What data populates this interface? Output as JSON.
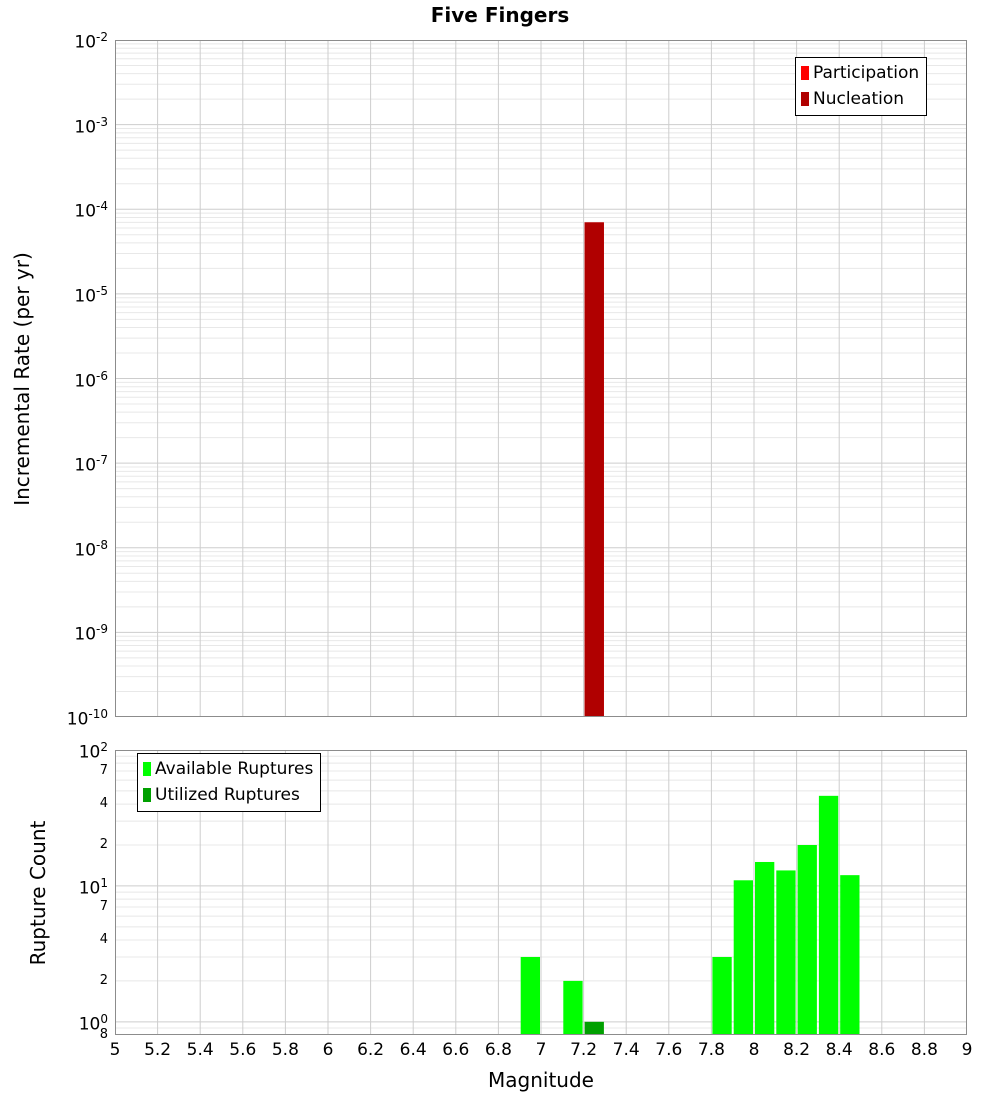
{
  "title": "Five Fingers",
  "colors": {
    "participation": "#ff0000",
    "nucleation": "#b00000",
    "available": "#00ff00",
    "utilized": "#00a000",
    "grid_major": "#cdcdcd",
    "grid_minor": "#e8e8e8",
    "axis_border": "#8c8c8c"
  },
  "x_axis": {
    "label": "Magnitude",
    "min": 5,
    "max": 9,
    "tick_values": [
      5,
      5.2,
      5.4,
      5.6,
      5.8,
      6,
      6.2,
      6.4,
      6.6,
      6.8,
      7,
      7.2,
      7.4,
      7.6,
      7.8,
      8,
      8.2,
      8.4,
      8.6,
      8.8,
      9
    ],
    "tick_labels": [
      "5",
      "5.2",
      "5.4",
      "5.6",
      "5.8",
      "6",
      "6.2",
      "6.4",
      "6.6",
      "6.8",
      "7",
      "7.2",
      "7.4",
      "7.6",
      "7.8",
      "8",
      "8.2",
      "8.4",
      "8.6",
      "8.8",
      "9"
    ]
  },
  "chart_data": [
    {
      "type": "bar",
      "name": "incremental-rate",
      "title": "Five Fingers",
      "ylabel": "Incremental Rate (per yr)",
      "yscale": "log",
      "ylim": [
        1e-10,
        0.01
      ],
      "ytick_major_exponents": [
        -2,
        -3,
        -4,
        -5,
        -6,
        -7,
        -8,
        -9,
        -10
      ],
      "ytick_minor": [],
      "bin_width": 0.1,
      "grid": true,
      "legend_position": "top-right",
      "legend": [
        {
          "label": "Participation",
          "color_key": "participation"
        },
        {
          "label": "Nucleation",
          "color_key": "nucleation"
        }
      ],
      "series": [
        {
          "name": "Participation",
          "color_key": "participation",
          "points": [
            {
              "x": 7.25,
              "y": 7e-05
            }
          ]
        },
        {
          "name": "Nucleation",
          "color_key": "nucleation",
          "points": [
            {
              "x": 7.25,
              "y": 7e-05
            }
          ]
        }
      ]
    },
    {
      "type": "bar",
      "name": "rupture-count",
      "title": "",
      "ylabel": "Rupture Count",
      "xlabel": "Magnitude",
      "yscale": "log",
      "ylim": [
        0.8,
        100
      ],
      "ytick_major_exponents": [
        2,
        1,
        0
      ],
      "ytick_minor": [
        {
          "value": 70,
          "label": "7"
        },
        {
          "value": 40,
          "label": "4"
        },
        {
          "value": 20,
          "label": "2"
        },
        {
          "value": 7,
          "label": "7"
        },
        {
          "value": 4,
          "label": "4"
        },
        {
          "value": 2,
          "label": "2"
        },
        {
          "value": 0.8,
          "label": "8"
        }
      ],
      "bin_width": 0.1,
      "grid": true,
      "legend_position": "top-left",
      "legend": [
        {
          "label": "Available Ruptures",
          "color_key": "available"
        },
        {
          "label": "Utilized Ruptures",
          "color_key": "utilized"
        }
      ],
      "series": [
        {
          "name": "Available Ruptures",
          "color_key": "available",
          "points": [
            {
              "x": 6.95,
              "y": 3
            },
            {
              "x": 7.15,
              "y": 2
            },
            {
              "x": 7.85,
              "y": 3
            },
            {
              "x": 7.95,
              "y": 11
            },
            {
              "x": 8.05,
              "y": 15
            },
            {
              "x": 8.15,
              "y": 13
            },
            {
              "x": 8.25,
              "y": 20
            },
            {
              "x": 8.35,
              "y": 46
            },
            {
              "x": 8.45,
              "y": 12
            }
          ]
        },
        {
          "name": "Utilized Ruptures",
          "color_key": "utilized",
          "points": [
            {
              "x": 7.25,
              "y": 1
            }
          ]
        }
      ]
    }
  ]
}
